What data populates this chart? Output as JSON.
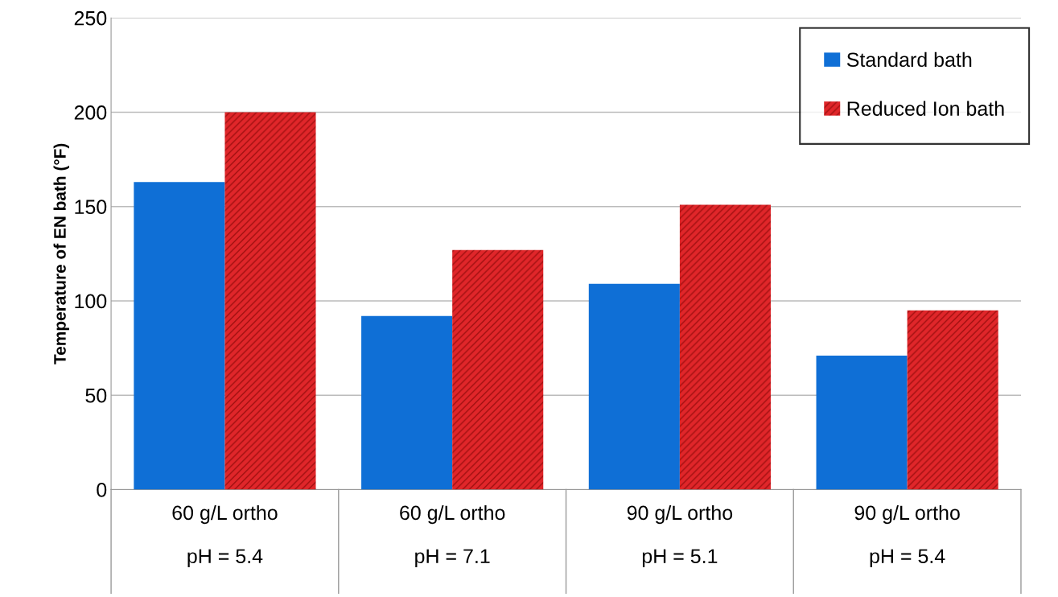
{
  "chart_data": {
    "type": "bar",
    "ylabel": "Temperature of EN bath (°F)",
    "categories": [
      "60 g/L ortho\n\npH = 5.4",
      "60 g/L ortho\n\npH = 7.1",
      "90 g/L ortho\n\npH = 5.1",
      "90 g/L ortho\n\npH = 5.4"
    ],
    "series": [
      {
        "name": "Standard bath",
        "color": "#0f6fd6",
        "values": [
          163,
          92,
          109,
          71
        ]
      },
      {
        "name": "Reduced Ion bath",
        "color": "#e0262a",
        "values": [
          200,
          127,
          151,
          95
        ]
      }
    ],
    "ylim": [
      0,
      250
    ],
    "yticks": [
      0,
      50,
      100,
      150,
      200,
      250
    ],
    "grid": "y",
    "legend": "top right"
  }
}
